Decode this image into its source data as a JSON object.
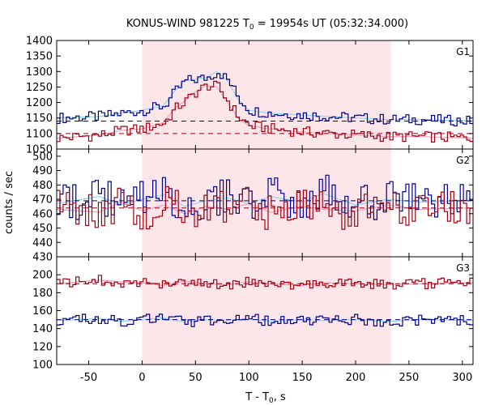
{
  "chart_data": {
    "type": "line",
    "title_main": "KONUS-WIND 981225 T",
    "title_sub": "0",
    "title_rest": " = 19954s UT (05:32:34.000)",
    "xlabel_main": "T - T",
    "xlabel_sub": "0",
    "xlabel_rest": ", s",
    "ylabel": "counts / sec",
    "xlim": [
      -80,
      310
    ],
    "x_ticks": [
      -50,
      0,
      50,
      100,
      150,
      200,
      250,
      300
    ],
    "shaded_interval": [
      0,
      233
    ],
    "colors": {
      "series_a": "#00008b",
      "series_b": "#a00010",
      "fit_a": "#8fd8e8",
      "fit_b": "#f0a0c0",
      "shade": "#fde6ea"
    },
    "panels": [
      {
        "label": "G1",
        "ylim": [
          1050,
          1400
        ],
        "y_ticks": [
          1050,
          1100,
          1150,
          1200,
          1250,
          1300,
          1350,
          1400
        ],
        "x": [
          -80,
          -40,
          -20,
          0,
          20,
          30,
          40,
          50,
          60,
          70,
          80,
          90,
          100,
          120,
          150,
          200,
          230,
          260,
          310
        ],
        "series": [
          {
            "values": [
              1150,
              1155,
              1165,
              1175,
              1190,
              1235,
              1270,
              1275,
              1280,
              1300,
              1270,
              1210,
              1175,
              1165,
              1160,
              1150,
              1145,
              1145,
              1140
            ]
          },
          {
            "values": [
              1085,
              1095,
              1110,
              1115,
              1135,
              1180,
              1205,
              1235,
              1255,
              1250,
              1200,
              1150,
              1125,
              1115,
              1105,
              1095,
              1090,
              1090,
              1085
            ]
          }
        ],
        "backgrounds": [
          1140,
          1100
        ]
      },
      {
        "label": "G2",
        "ylim": [
          430,
          505
        ],
        "y_ticks": [
          430,
          440,
          450,
          460,
          470,
          480,
          490,
          500
        ],
        "x": [
          -80,
          -40,
          -20,
          0,
          20,
          40,
          60,
          80,
          100,
          120,
          150,
          170,
          200,
          230,
          260,
          310
        ],
        "series": [
          {
            "values": [
              467,
              472,
              466,
              470,
              473,
              465,
              469,
              471,
              467,
              472,
              468,
              474,
              466,
              470,
              468,
              469
            ]
          },
          {
            "values": [
              463,
              461,
              468,
              462,
              466,
              460,
              465,
              463,
              467,
              461,
              465,
              463,
              462,
              466,
              463,
              464
            ]
          }
        ],
        "backgrounds": [
          469,
          464
        ]
      },
      {
        "label": "G3",
        "ylim": [
          100,
          220
        ],
        "y_ticks": [
          100,
          120,
          140,
          160,
          180,
          200
        ],
        "x": [
          -80,
          -40,
          -20,
          0,
          20,
          40,
          60,
          80,
          100,
          120,
          150,
          170,
          200,
          230,
          260,
          310
        ],
        "series": [
          {
            "values": [
              149,
              151,
              148,
              150,
              152,
              147,
              150,
              149,
              151,
              148,
              150,
              149,
              150,
              148,
              150,
              149
            ]
          },
          {
            "values": [
              190,
              194,
              192,
              191,
              188,
              193,
              190,
              189,
              192,
              190,
              188,
              191,
              190,
              189,
              190,
              191
            ]
          }
        ],
        "backgrounds": [
          150,
          190
        ]
      }
    ]
  }
}
